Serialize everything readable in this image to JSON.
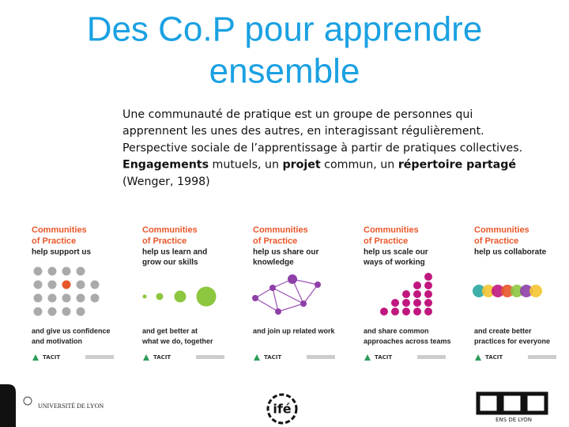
{
  "title": [
    "Des Co.P pour apprendre",
    "ensemble"
  ],
  "intro": {
    "lines": [
      [
        {
          "text": "Une communauté de pratique est un groupe de personnes qui"
        }
      ],
      [
        {
          "text": "apprennent les unes des autres, en interagissant régulièrement."
        }
      ],
      [
        {
          "text": "Perspective sociale de l’apprentissage à partir de pratiques collectives."
        }
      ],
      [
        {
          "text": "Engagements",
          "bold": true
        },
        {
          "text": " mutuels, un "
        },
        {
          "text": "projet",
          "bold": true
        },
        {
          "text": " commun, un "
        },
        {
          "text": "répertoire partagé",
          "bold": true
        }
      ],
      [
        {
          "text": "(Wenger, 1998)"
        }
      ]
    ]
  },
  "posters": [
    {
      "heading": [
        "Communities",
        "of Practice"
      ],
      "subtitle": [
        "help support us"
      ],
      "footer": [
        "and give us confidence",
        "and motivation"
      ],
      "brand": "TACIT"
    },
    {
      "heading": [
        "Communities",
        "of Practice"
      ],
      "subtitle": [
        "help us learn and",
        "grow our skills"
      ],
      "footer": [
        "and get better at",
        "what we do, together"
      ],
      "brand": "TACIT"
    },
    {
      "heading": [
        "Communities",
        "of Practice"
      ],
      "subtitle": [
        "help us share our",
        "knowledge"
      ],
      "footer": [
        "and join up related work"
      ],
      "brand": "TACIT"
    },
    {
      "heading": [
        "Communities",
        "of Practice"
      ],
      "subtitle": [
        "help us scale our",
        "ways of working"
      ],
      "footer": [
        "and share common",
        "approaches across teams"
      ],
      "brand": "TACIT"
    },
    {
      "heading": [
        "Communities",
        "of Practice"
      ],
      "subtitle": [
        "help us collaborate"
      ],
      "footer": [
        "and create better",
        "practices for everyone"
      ],
      "brand": "TACIT"
    }
  ],
  "logos": {
    "left": "UNIVERSITÉ DE LYON",
    "center": "ifé",
    "right": "ENS DE LYON"
  }
}
